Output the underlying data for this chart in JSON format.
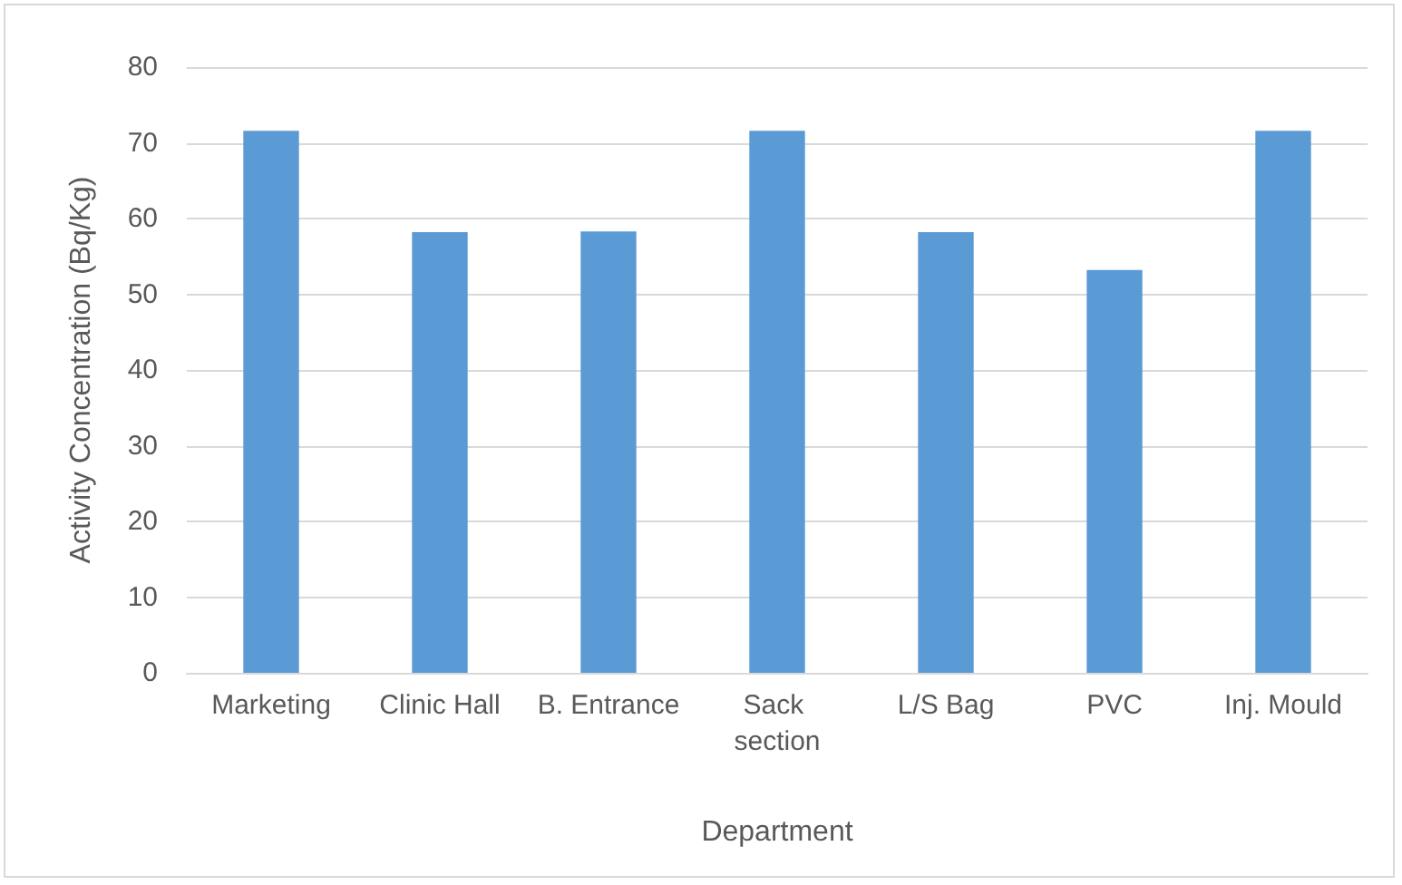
{
  "chart_data": {
    "type": "bar",
    "xlabel": "Department",
    "ylabel": "Activity Concentration (Bq/Kg)",
    "categories": [
      "Marketing",
      "Clinic Hall",
      "B. Entrance",
      "Sack section",
      "L/S Bag",
      "PVC",
      "Inj. Mould"
    ],
    "values": [
      71.6,
      58.2,
      58.3,
      71.6,
      58.2,
      53.2,
      71.6
    ],
    "color": "#5b9bd5",
    "ylim": [
      0,
      80
    ],
    "yticks": [
      0,
      10,
      20,
      30,
      40,
      50,
      60,
      70,
      80
    ],
    "grid": "y"
  }
}
